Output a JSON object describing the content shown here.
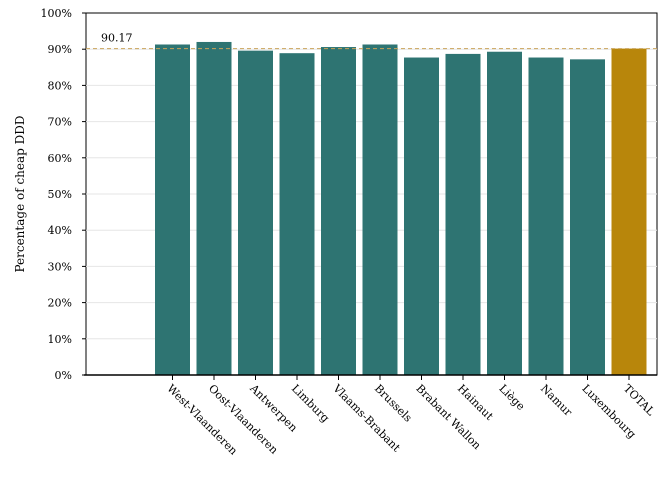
{
  "chart_data": {
    "type": "bar",
    "ylabel": "Percentage of cheap DDD",
    "xlabel": "",
    "ylim": [
      0,
      100
    ],
    "y_ticks": [
      "0%",
      "10%",
      "20%",
      "30%",
      "40%",
      "50%",
      "60%",
      "70%",
      "80%",
      "90%",
      "100%"
    ],
    "y_tick_values": [
      0,
      10,
      20,
      30,
      40,
      50,
      60,
      70,
      80,
      90,
      100
    ],
    "grid": true,
    "categories": [
      "West-Vlaanderen",
      "Oost-Vlaanderen",
      "Antwerpen",
      "Limburg",
      "Vlaams-Brabant",
      "Brussels",
      "Brabant Wallon",
      "Hainaut",
      "Liège",
      "Namur",
      "Luxembourg",
      "TOTAL"
    ],
    "values": [
      91.3,
      92.0,
      89.6,
      88.9,
      90.6,
      91.3,
      87.7,
      88.7,
      89.3,
      87.7,
      87.2,
      90.17
    ],
    "reference_line": {
      "value": 90.17,
      "label": "90.17",
      "color": "#c9a35a"
    },
    "colors": {
      "region": "#2e7472",
      "total": "#b8860b",
      "grid": "#e6e6e6"
    }
  }
}
